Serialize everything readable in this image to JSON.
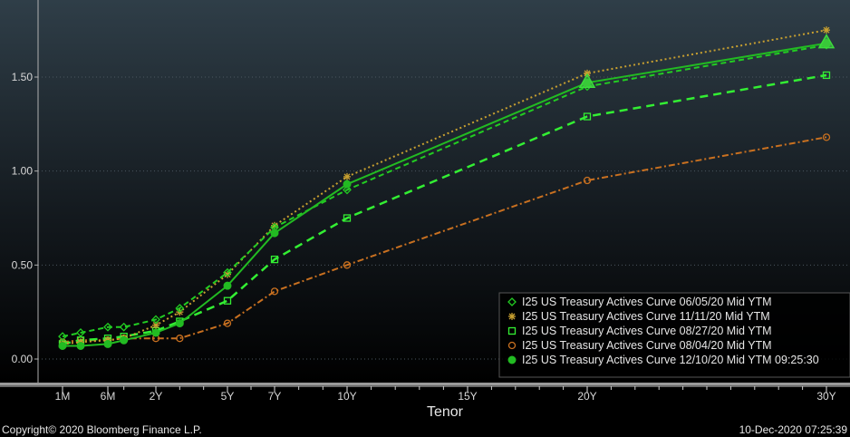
{
  "chart_data": {
    "type": "line",
    "xlabel": "Tenor",
    "x_ticks": [
      {
        "label": "1M",
        "t": 0.0833
      },
      {
        "label": "6M",
        "t": 0.5
      },
      {
        "label": "2Y",
        "t": 2
      },
      {
        "label": "5Y",
        "t": 5
      },
      {
        "label": "7Y",
        "t": 7
      },
      {
        "label": "10Y",
        "t": 10
      },
      {
        "label": "15Y",
        "t": 15
      },
      {
        "label": "20Y",
        "t": 20
      },
      {
        "label": "30Y",
        "t": 30
      }
    ],
    "y_ticks": [
      {
        "label": "0.00",
        "v": 0.0
      },
      {
        "label": "0.50",
        "v": 0.5
      },
      {
        "label": "1.00",
        "v": 1.0
      },
      {
        "label": "1.50",
        "v": 1.5
      }
    ],
    "ylim": [
      -0.12,
      1.87
    ],
    "legend_position": "bottom-right",
    "series": [
      {
        "name": "I25 US Treasury Actives Curve 06/05/20 Mid YTM",
        "color": "#22cc22",
        "dash": "6,4",
        "marker": "diamond",
        "width": 2,
        "points": [
          [
            0.0833,
            0.12
          ],
          [
            0.25,
            0.14
          ],
          [
            0.5,
            0.17
          ],
          [
            1,
            0.17
          ],
          [
            2,
            0.21
          ],
          [
            3,
            0.27
          ],
          [
            5,
            0.46
          ],
          [
            7,
            0.7
          ],
          [
            10,
            0.9
          ],
          [
            20,
            1.45
          ],
          [
            30,
            1.67
          ]
        ]
      },
      {
        "name": "I25 US Treasury Actives Curve 11/11/20 Mid YTM",
        "color": "#c8a030",
        "dash": "2,3",
        "marker": "asterisk",
        "width": 2,
        "points": [
          [
            0.0833,
            0.08
          ],
          [
            0.25,
            0.09
          ],
          [
            0.5,
            0.1
          ],
          [
            1,
            0.11
          ],
          [
            2,
            0.18
          ],
          [
            3,
            0.25
          ],
          [
            5,
            0.45
          ],
          [
            7,
            0.71
          ],
          [
            10,
            0.97
          ],
          [
            20,
            1.52
          ],
          [
            30,
            1.75
          ]
        ]
      },
      {
        "name": "I25 US Treasury Actives Curve 08/27/20 Mid YTM",
        "color": "#33ee33",
        "dash": "9,6",
        "marker": "square",
        "width": 2.5,
        "points": [
          [
            0.0833,
            0.08
          ],
          [
            0.25,
            0.1
          ],
          [
            0.5,
            0.11
          ],
          [
            1,
            0.12
          ],
          [
            2,
            0.15
          ],
          [
            3,
            0.2
          ],
          [
            5,
            0.31
          ],
          [
            7,
            0.53
          ],
          [
            10,
            0.75
          ],
          [
            20,
            1.29
          ],
          [
            30,
            1.51
          ]
        ]
      },
      {
        "name": "I25 US Treasury Actives Curve 08/04/20 Mid YTM",
        "color": "#c87020",
        "dash": "7,3,2,3",
        "marker": "circle-open",
        "width": 2,
        "points": [
          [
            0.0833,
            0.09
          ],
          [
            0.25,
            0.1
          ],
          [
            0.5,
            0.1
          ],
          [
            1,
            0.11
          ],
          [
            2,
            0.11
          ],
          [
            3,
            0.11
          ],
          [
            5,
            0.19
          ],
          [
            7,
            0.36
          ],
          [
            10,
            0.5
          ],
          [
            20,
            0.95
          ],
          [
            30,
            1.18
          ]
        ]
      },
      {
        "name": "I25 US Treasury Actives Curve 12/10/20 Mid YTM 09:25:30",
        "color": "#22bb22",
        "dash": "",
        "marker": "circle-filled",
        "width": 2,
        "points": [
          [
            0.0833,
            0.07
          ],
          [
            0.25,
            0.07
          ],
          [
            0.5,
            0.08
          ],
          [
            1,
            0.1
          ],
          [
            2,
            0.14
          ],
          [
            3,
            0.19
          ],
          [
            5,
            0.39
          ],
          [
            7,
            0.67
          ],
          [
            10,
            0.93
          ],
          [
            20,
            1.47
          ],
          [
            30,
            1.68
          ]
        ]
      }
    ],
    "latest_markers": [
      {
        "t": 20,
        "v": 1.47
      },
      {
        "t": 30,
        "v": 1.68
      }
    ]
  },
  "footer": {
    "copyright": "Copyright© 2020 Bloomberg Finance L.P.",
    "timestamp": "10-Dec-2020 07:25:39"
  }
}
